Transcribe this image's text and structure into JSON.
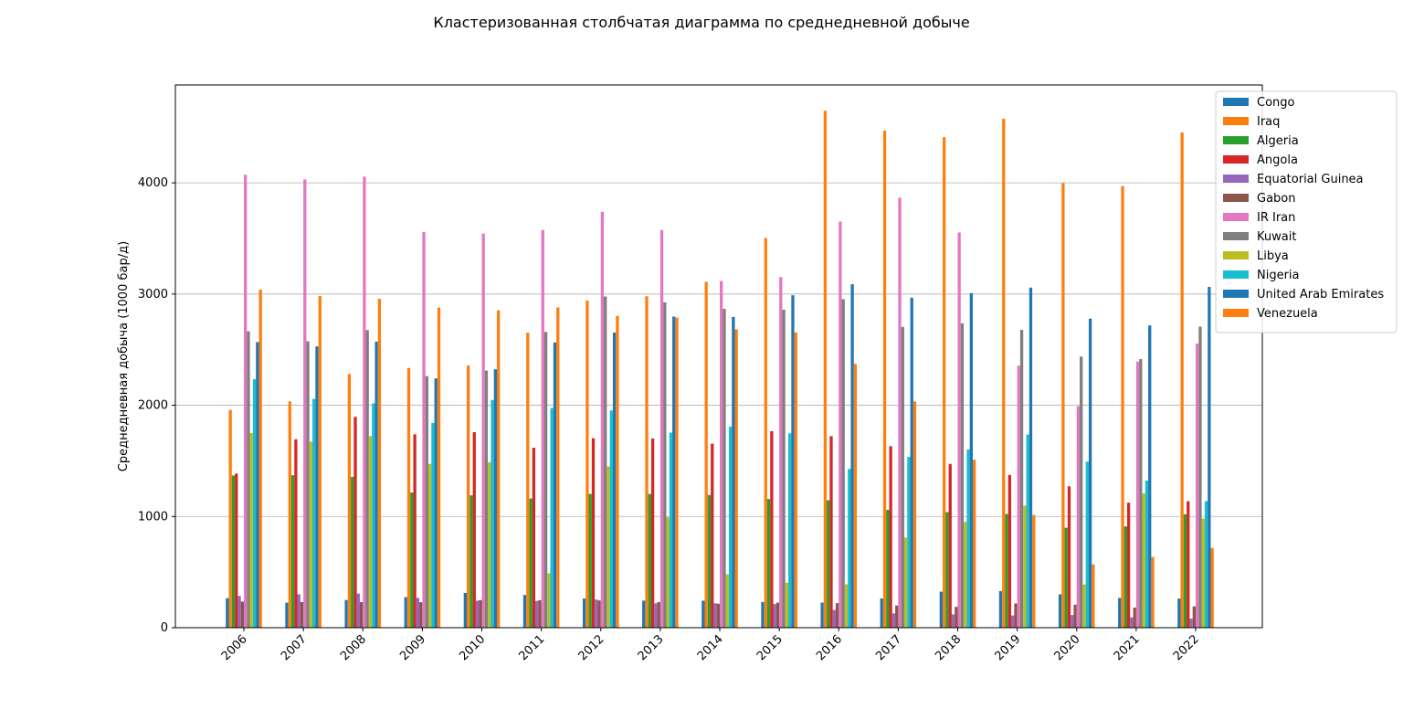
{
  "chart_data": {
    "type": "bar",
    "title": "Кластеризованная столбчатая диаграмма по среднедневной добыче",
    "xlabel": "",
    "ylabel": "Среднедневная добыча (1000 бар/д)",
    "ylim": [
      0,
      4880
    ],
    "yticks": [
      0,
      1000,
      2000,
      3000,
      4000
    ],
    "grid": "y",
    "legend_position": "top-right",
    "categories": [
      "2006",
      "2007",
      "2008",
      "2009",
      "2010",
      "2011",
      "2012",
      "2013",
      "2014",
      "2015",
      "2016",
      "2017",
      "2018",
      "2019",
      "2020",
      "2021",
      "2022"
    ],
    "series": [
      {
        "name": "Congo",
        "color": "#1f77b4",
        "values": [
          265,
          225,
          249,
          275,
          313,
          294,
          262,
          243,
          243,
          231,
          226,
          263,
          324,
          329,
          300,
          267,
          262
        ]
      },
      {
        "name": "Iraq",
        "color": "#ff7f0e",
        "values": [
          1958,
          2035,
          2281,
          2336,
          2358,
          2653,
          2942,
          2980,
          3110,
          3504,
          4648,
          4469,
          4410,
          4576,
          3997,
          3971,
          4453
        ]
      },
      {
        "name": "Algeria",
        "color": "#2ca02c",
        "values": [
          1369,
          1371,
          1356,
          1216,
          1190,
          1162,
          1203,
          1203,
          1193,
          1157,
          1146,
          1059,
          1040,
          1023,
          899,
          911,
          1020
        ]
      },
      {
        "name": "Angola",
        "color": "#d62728",
        "values": [
          1386,
          1694,
          1896,
          1739,
          1758,
          1618,
          1704,
          1701,
          1654,
          1767,
          1722,
          1632,
          1473,
          1373,
          1271,
          1124,
          1137
        ]
      },
      {
        "name": "Equatorial Guinea",
        "color": "#9467bd",
        "values": [
          285,
          300,
          306,
          268,
          243,
          241,
          253,
          220,
          220,
          212,
          160,
          129,
          120,
          110,
          114,
          93,
          81
        ]
      },
      {
        "name": "Gabon",
        "color": "#8c564b",
        "values": [
          235,
          231,
          230,
          229,
          248,
          247,
          245,
          230,
          215,
          225,
          221,
          200,
          187,
          218,
          207,
          181,
          191
        ]
      },
      {
        "name": "IR Iran",
        "color": "#e377c2",
        "values": [
          4073,
          4031,
          4056,
          3557,
          3544,
          3576,
          3740,
          3576,
          3117,
          3152,
          3651,
          3867,
          3553,
          2356,
          1991,
          2392,
          2554
        ]
      },
      {
        "name": "Kuwait",
        "color": "#7f7f7f",
        "values": [
          2665,
          2575,
          2676,
          2262,
          2312,
          2659,
          2978,
          2925,
          2867,
          2859,
          2954,
          2704,
          2737,
          2678,
          2438,
          2415,
          2707
        ]
      },
      {
        "name": "Libya",
        "color": "#bcbd22",
        "values": [
          1751,
          1674,
          1722,
          1473,
          1487,
          489,
          1450,
          993,
          480,
          404,
          390,
          811,
          951,
          1097,
          389,
          1207,
          981
        ]
      },
      {
        "name": "Nigeria",
        "color": "#17becf",
        "values": [
          2234,
          2057,
          2017,
          1842,
          2048,
          1975,
          1954,
          1754,
          1807,
          1748,
          1427,
          1536,
          1602,
          1737,
          1493,
          1323,
          1138
        ]
      },
      {
        "name": "United Arab Emirates",
        "color": "#1f77b4",
        "values": [
          2568,
          2529,
          2572,
          2242,
          2324,
          2565,
          2653,
          2797,
          2794,
          2989,
          3088,
          2967,
          3008,
          3058,
          2779,
          2718,
          3064
        ]
      },
      {
        "name": "Venezuela",
        "color": "#ff7f0e",
        "values": [
          3040,
          2982,
          2957,
          2878,
          2854,
          2880,
          2804,
          2789,
          2683,
          2654,
          2373,
          2035,
          1510,
          1013,
          569,
          636,
          716
        ]
      }
    ]
  }
}
